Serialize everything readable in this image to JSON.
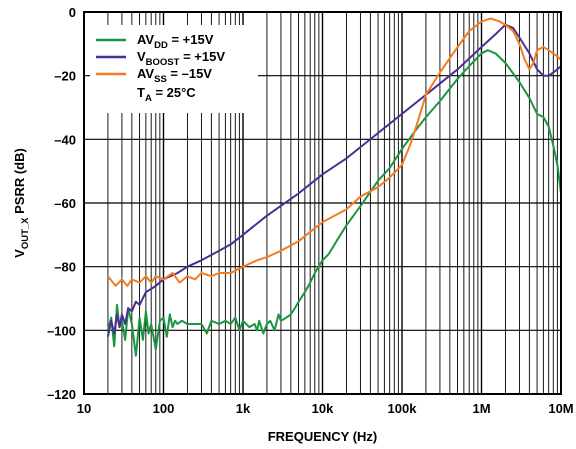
{
  "chart_data": {
    "type": "line",
    "xlabel": "FREQUENCY (Hz)",
    "ylabel": {
      "main": "V",
      "sub": "OUT_X",
      "rest": " PSRR (dB)"
    },
    "x_scale": "log",
    "xlim": [
      10,
      10000000
    ],
    "ylim": [
      -120,
      0
    ],
    "x_ticks": [
      {
        "value": 10,
        "label": "10"
      },
      {
        "value": 100,
        "label": "100"
      },
      {
        "value": 1000,
        "label": "1k"
      },
      {
        "value": 10000,
        "label": "10k"
      },
      {
        "value": 100000,
        "label": "100k"
      },
      {
        "value": 1000000,
        "label": "1M"
      },
      {
        "value": 10000000,
        "label": "10M"
      }
    ],
    "y_ticks": [
      {
        "value": 0,
        "label": "0"
      },
      {
        "value": -20,
        "label": "–20"
      },
      {
        "value": -40,
        "label": "–40"
      },
      {
        "value": -60,
        "label": "–60"
      },
      {
        "value": -80,
        "label": "–80"
      },
      {
        "value": -100,
        "label": "–100"
      },
      {
        "value": -120,
        "label": "–120"
      }
    ],
    "grid": true,
    "legend_position": "top-left",
    "legend": [
      {
        "main": "AV",
        "sub": "DD",
        "rest": " = +15V"
      },
      {
        "main": "V",
        "sub": "BOOST",
        "rest": " = +15V"
      },
      {
        "main": "AV",
        "sub": "SS",
        "rest": " = –15V"
      }
    ],
    "annotation": {
      "main": "T",
      "sub": "A",
      "rest": " = 25°C"
    },
    "series": [
      {
        "name": "AVDD = +15V",
        "color": "#1a9641",
        "points": [
          [
            20,
            -100
          ],
          [
            22,
            -96
          ],
          [
            24,
            -105
          ],
          [
            26,
            -92
          ],
          [
            28,
            -99
          ],
          [
            30,
            -97
          ],
          [
            33,
            -103
          ],
          [
            36,
            -93
          ],
          [
            40,
            -98
          ],
          [
            45,
            -108
          ],
          [
            50,
            -96
          ],
          [
            55,
            -103
          ],
          [
            60,
            -94
          ],
          [
            65,
            -101
          ],
          [
            70,
            -98
          ],
          [
            80,
            -106
          ],
          [
            90,
            -97
          ],
          [
            100,
            -96
          ],
          [
            110,
            -102
          ],
          [
            120,
            -95
          ],
          [
            130,
            -99
          ],
          [
            140,
            -97
          ],
          [
            150,
            -98
          ],
          [
            170,
            -97
          ],
          [
            200,
            -98
          ],
          [
            250,
            -98
          ],
          [
            300,
            -98
          ],
          [
            350,
            -101
          ],
          [
            400,
            -97
          ],
          [
            500,
            -98
          ],
          [
            600,
            -97
          ],
          [
            700,
            -98
          ],
          [
            800,
            -96
          ],
          [
            900,
            -100
          ],
          [
            1000,
            -97
          ],
          [
            1200,
            -99
          ],
          [
            1400,
            -98
          ],
          [
            1500,
            -100
          ],
          [
            1600,
            -97
          ],
          [
            1800,
            -101
          ],
          [
            2000,
            -98
          ],
          [
            2200,
            -97
          ],
          [
            2500,
            -100
          ],
          [
            2800,
            -95
          ],
          [
            3000,
            -97
          ],
          [
            3500,
            -96
          ],
          [
            4000,
            -95
          ],
          [
            4500,
            -93
          ],
          [
            5000,
            -91
          ],
          [
            6000,
            -88
          ],
          [
            7000,
            -85
          ],
          [
            8000,
            -82
          ],
          [
            10000,
            -78
          ],
          [
            12000,
            -76
          ],
          [
            15000,
            -72
          ],
          [
            20000,
            -67
          ],
          [
            30000,
            -61
          ],
          [
            50000,
            -53
          ],
          [
            70000,
            -49
          ],
          [
            100000,
            -43
          ],
          [
            150000,
            -37
          ],
          [
            200000,
            -33
          ],
          [
            300000,
            -28
          ],
          [
            500000,
            -21
          ],
          [
            700000,
            -17
          ],
          [
            1000000,
            -13
          ],
          [
            1200000,
            -12
          ],
          [
            1500000,
            -13
          ],
          [
            2000000,
            -16
          ],
          [
            3000000,
            -22
          ],
          [
            4000000,
            -27
          ],
          [
            5000000,
            -32
          ],
          [
            6000000,
            -33
          ],
          [
            7000000,
            -36
          ],
          [
            8000000,
            -42
          ],
          [
            9000000,
            -48
          ],
          [
            10000000,
            -57
          ]
        ]
      },
      {
        "name": "VBOOST = +15V",
        "color": "#4b2e91",
        "points": [
          [
            20,
            -102
          ],
          [
            22,
            -97
          ],
          [
            24,
            -101
          ],
          [
            26,
            -95
          ],
          [
            28,
            -99
          ],
          [
            30,
            -95
          ],
          [
            33,
            -98
          ],
          [
            36,
            -93
          ],
          [
            40,
            -94
          ],
          [
            45,
            -91
          ],
          [
            50,
            -92
          ],
          [
            60,
            -88
          ],
          [
            70,
            -87
          ],
          [
            80,
            -86
          ],
          [
            100,
            -84
          ],
          [
            150,
            -82
          ],
          [
            200,
            -80
          ],
          [
            300,
            -78
          ],
          [
            500,
            -75
          ],
          [
            700,
            -73
          ],
          [
            1000,
            -70
          ],
          [
            2000,
            -64
          ],
          [
            5000,
            -57
          ],
          [
            10000,
            -51
          ],
          [
            20000,
            -46
          ],
          [
            50000,
            -38
          ],
          [
            100000,
            -32
          ],
          [
            200000,
            -26
          ],
          [
            500000,
            -18
          ],
          [
            1000000,
            -11
          ],
          [
            1500000,
            -7
          ],
          [
            2000000,
            -4
          ],
          [
            2500000,
            -5
          ],
          [
            3000000,
            -8
          ],
          [
            4000000,
            -13
          ],
          [
            5000000,
            -18
          ],
          [
            6000000,
            -20
          ],
          [
            7000000,
            -20
          ],
          [
            8000000,
            -19
          ],
          [
            9000000,
            -18
          ],
          [
            10000000,
            -17
          ]
        ]
      },
      {
        "name": "AVSS = –15V",
        "color": "#f47c20",
        "points": [
          [
            20,
            -83
          ],
          [
            25,
            -86
          ],
          [
            30,
            -84
          ],
          [
            35,
            -86
          ],
          [
            40,
            -84
          ],
          [
            50,
            -85
          ],
          [
            60,
            -83
          ],
          [
            70,
            -85
          ],
          [
            80,
            -83
          ],
          [
            100,
            -84
          ],
          [
            130,
            -82
          ],
          [
            160,
            -85
          ],
          [
            200,
            -83
          ],
          [
            250,
            -84
          ],
          [
            300,
            -82
          ],
          [
            400,
            -83
          ],
          [
            500,
            -82
          ],
          [
            700,
            -82
          ],
          [
            1000,
            -80
          ],
          [
            1500,
            -78
          ],
          [
            2000,
            -77
          ],
          [
            3000,
            -75
          ],
          [
            5000,
            -72
          ],
          [
            10000,
            -66
          ],
          [
            20000,
            -62
          ],
          [
            30000,
            -58
          ],
          [
            50000,
            -55
          ],
          [
            70000,
            -52
          ],
          [
            100000,
            -48
          ],
          [
            130000,
            -41
          ],
          [
            160000,
            -34
          ],
          [
            200000,
            -26
          ],
          [
            300000,
            -19
          ],
          [
            500000,
            -11
          ],
          [
            700000,
            -6
          ],
          [
            1000000,
            -3
          ],
          [
            1300000,
            -2
          ],
          [
            1700000,
            -3
          ],
          [
            2000000,
            -4
          ],
          [
            2500000,
            -6
          ],
          [
            3000000,
            -10
          ],
          [
            3500000,
            -15
          ],
          [
            4000000,
            -18
          ],
          [
            4500000,
            -16
          ],
          [
            5000000,
            -12
          ],
          [
            6000000,
            -11
          ],
          [
            7000000,
            -12
          ],
          [
            8000000,
            -13
          ],
          [
            9000000,
            -14
          ],
          [
            10000000,
            -15
          ]
        ]
      }
    ]
  }
}
